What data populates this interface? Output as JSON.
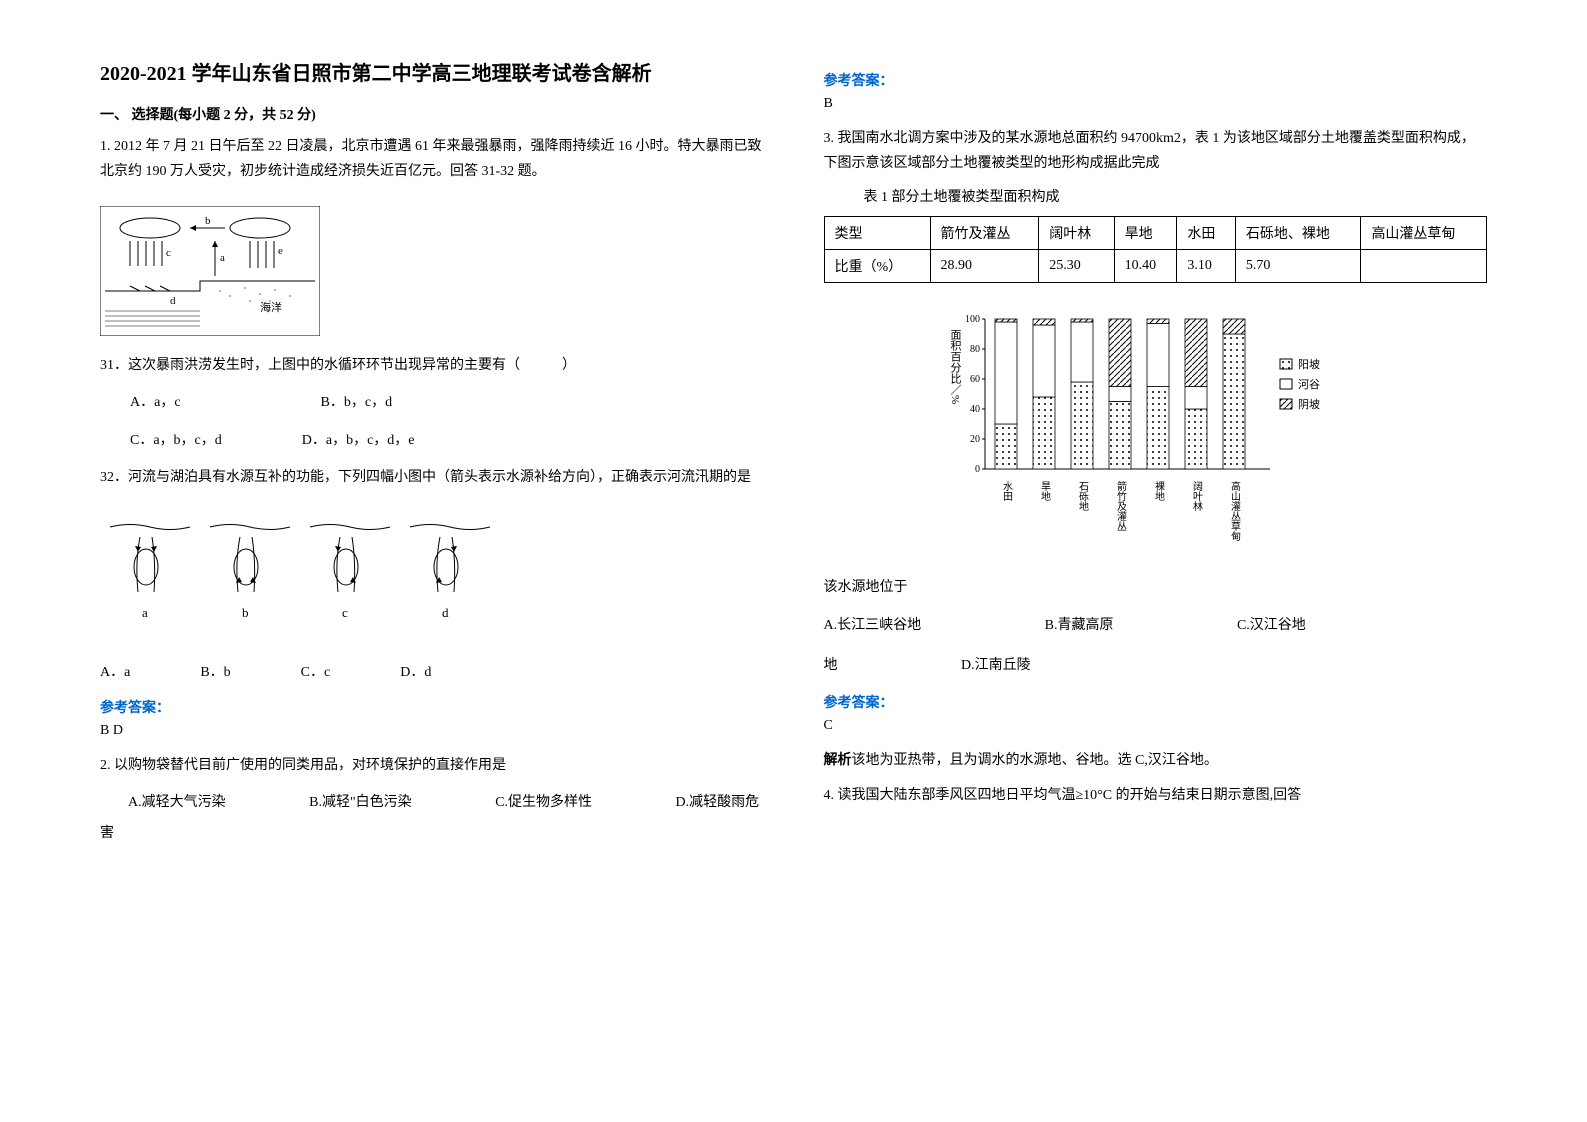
{
  "title": "2020-2021 学年山东省日照市第二中学高三地理联考试卷含解析",
  "section1": {
    "header": "一、 选择题(每小题 2 分，共 52 分)",
    "q1": {
      "intro": "1. 2012 年 7 月 21 日午后至 22 日凌晨，北京市遭遇 61 年来最强暴雨，强降雨持续近 16 小时。特大暴雨已致北京约 190 万人受灾，初步统计造成经济损失近百亿元。回答 31-32 题。",
      "sub31": {
        "stem": "31．这次暴雨洪涝发生时，上图中的水循环环节出现异常的主要有（　　　）",
        "optA": "A．a，c",
        "optB": "B．b，c，d",
        "optC": "C．a，b，c，d",
        "optD": "D．a，b，c，d，e"
      },
      "sub32": {
        "stem": "32．河流与湖泊具有水源互补的功能，下列四幅小图中（箭头表示水源补给方向），正确表示河流汛期的是",
        "optA": "A．a",
        "optB": "B．b",
        "optC": "C．c",
        "optD": "D．d"
      },
      "answer_label": "参考答案：",
      "answer": "B  D"
    },
    "q2": {
      "stem": "2. 以购物袋替代目前广使用的同类用品，对环境保护的直接作用是",
      "optA": "A.减轻大气污染",
      "optB": "B.减轻\"白色污染",
      "optC": "C.促生物多样性",
      "optD": "D.减轻酸雨危害",
      "answer_label": "参考答案：",
      "answer": "B"
    },
    "q3": {
      "intro": "3. 我国南水北调方案中涉及的某水源地总面积约 94700km2，表 1 为该地区域部分土地覆盖类型面积构成，下图示意该区域部分土地覆被类型的地形构成据此完成",
      "table_caption": "表 1  部分土地覆被类型面积构成",
      "table": {
        "headers": [
          "类型",
          "箭竹及灌丛",
          "阔叶林",
          "旱地",
          "水田",
          "石砾地、裸地",
          "高山灌丛草甸"
        ],
        "row_label": "比重（%）",
        "values": [
          "28.90",
          "25.30",
          "10.40",
          "3.10",
          "5.70",
          ""
        ]
      },
      "chart": {
        "bg_color": "#ffffff",
        "axis_color": "#000000",
        "ylabel": "面积百分比／%",
        "ymax": 100,
        "ytick_step": 20,
        "categories": [
          "水田",
          "旱地",
          "石砾地",
          "箭竹及灌丛",
          "裸地",
          "阔叶林",
          "高山灌丛草甸"
        ],
        "series": [
          {
            "name": "阳坡",
            "pattern": "dots",
            "values": [
              30,
              48,
              58,
              45,
              55,
              40,
              90
            ]
          },
          {
            "name": "河谷",
            "pattern": "none",
            "values": [
              68,
              48,
              40,
              10,
              42,
              15,
              0
            ]
          },
          {
            "name": "阴坡",
            "pattern": "diag",
            "values": [
              2,
              4,
              2,
              45,
              3,
              45,
              10
            ]
          }
        ],
        "legend": [
          "阳坡",
          "河谷",
          "阴坡"
        ]
      },
      "sub_stem": "该水源地位于",
      "optA": "A.长江三峡谷地",
      "optB": "B.青藏高原",
      "optC": "C.汉江谷地",
      "optD": "D.江南丘陵",
      "answer_label": "参考答案：",
      "answer": "C",
      "analysis_label": "解析",
      "analysis": "该地为亚热带，且为调水的水源地、谷地。选 C,汉江谷地。"
    },
    "q4": {
      "stem": "4. 读我国大陆东部季风区四地日平均气温≥10°C 的开始与结束日期示意图,回答"
    }
  },
  "diagram1": {
    "labels": {
      "a": "a",
      "b": "b",
      "d": "d",
      "e": "e",
      "e2": "e",
      "ocean": "海洋"
    }
  },
  "diagram2": {
    "labels": {
      "a": "a",
      "b": "b",
      "c": "c",
      "d": "d"
    }
  }
}
